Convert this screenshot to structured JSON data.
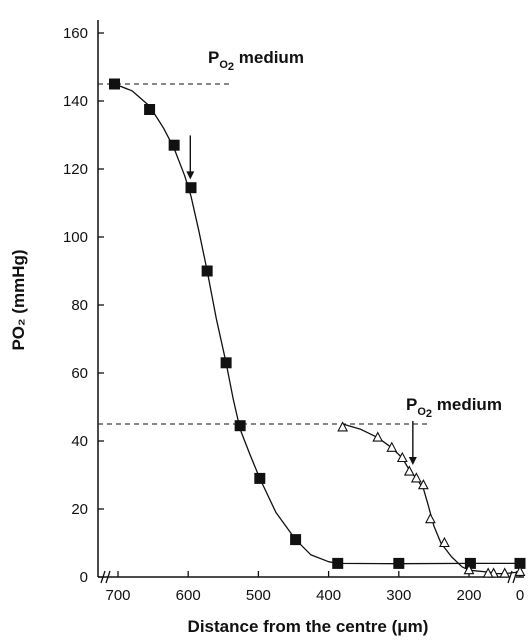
{
  "chart_data": {
    "type": "scatter",
    "xlabel": "Distance from the centre (μm)",
    "ylabel": "PO₂ (mmHg)",
    "xlim": [
      750,
      0
    ],
    "ylim": [
      0,
      160
    ],
    "x_reversed": true,
    "x_ticks": [
      700,
      600,
      500,
      400,
      300,
      200,
      0
    ],
    "y_ticks": [
      0,
      20,
      40,
      60,
      80,
      100,
      120,
      140,
      160
    ],
    "axis_break": "x-axis broken near the origin and between 200 and 0",
    "grid": false,
    "annotations": [
      {
        "text": "PO₂ medium",
        "level": 145,
        "arrow_at": [
          597,
          114
        ]
      },
      {
        "text": "PO₂ medium",
        "level": 45,
        "arrow_at": [
          280,
          30
        ]
      }
    ],
    "series": [
      {
        "marker": "filled-square",
        "color": "#111111",
        "points": [
          [
            705,
            145
          ],
          [
            655,
            137.5
          ],
          [
            620,
            127
          ],
          [
            596,
            114.5
          ],
          [
            573,
            90
          ],
          [
            546,
            63
          ],
          [
            526,
            44.5
          ],
          [
            498,
            29
          ],
          [
            447,
            11
          ],
          [
            387,
            4
          ],
          [
            300,
            4
          ],
          [
            198,
            4
          ],
          [
            0,
            4
          ]
        ],
        "curve": [
          [
            705,
            145
          ],
          [
            680,
            143
          ],
          [
            655,
            138.5
          ],
          [
            635,
            132
          ],
          [
            620,
            126
          ],
          [
            605,
            118
          ],
          [
            596,
            112
          ],
          [
            585,
            102
          ],
          [
            573,
            90
          ],
          [
            560,
            76
          ],
          [
            546,
            63
          ],
          [
            536,
            52.5
          ],
          [
            526,
            43.5
          ],
          [
            512,
            36
          ],
          [
            498,
            29
          ],
          [
            475,
            19
          ],
          [
            447,
            11
          ],
          [
            425,
            6.5
          ],
          [
            400,
            4.5
          ],
          [
            387,
            4
          ],
          [
            300,
            3.9
          ],
          [
            198,
            4
          ],
          [
            0,
            4
          ]
        ]
      },
      {
        "marker": "open-triangle",
        "color": "#111111",
        "points": [
          [
            380,
            44
          ],
          [
            330,
            41
          ],
          [
            310,
            38
          ],
          [
            295,
            35
          ],
          [
            285,
            31
          ],
          [
            275,
            29
          ],
          [
            265,
            27
          ],
          [
            255,
            17
          ],
          [
            235,
            10
          ],
          [
            200,
            2
          ],
          [
            165,
            1
          ],
          [
            125,
            1
          ],
          [
            60,
            1
          ],
          [
            0,
            1.5
          ]
        ],
        "curve": [
          [
            380,
            45
          ],
          [
            355,
            43.5
          ],
          [
            330,
            41
          ],
          [
            310,
            38
          ],
          [
            295,
            35
          ],
          [
            285,
            31.5
          ],
          [
            275,
            29
          ],
          [
            265,
            26
          ],
          [
            258,
            21
          ],
          [
            250,
            15
          ],
          [
            240,
            10
          ],
          [
            225,
            6
          ],
          [
            210,
            3
          ],
          [
            200,
            2
          ],
          [
            165,
            1.3
          ],
          [
            125,
            1
          ],
          [
            60,
            1
          ],
          [
            0,
            1.5
          ]
        ]
      }
    ]
  }
}
